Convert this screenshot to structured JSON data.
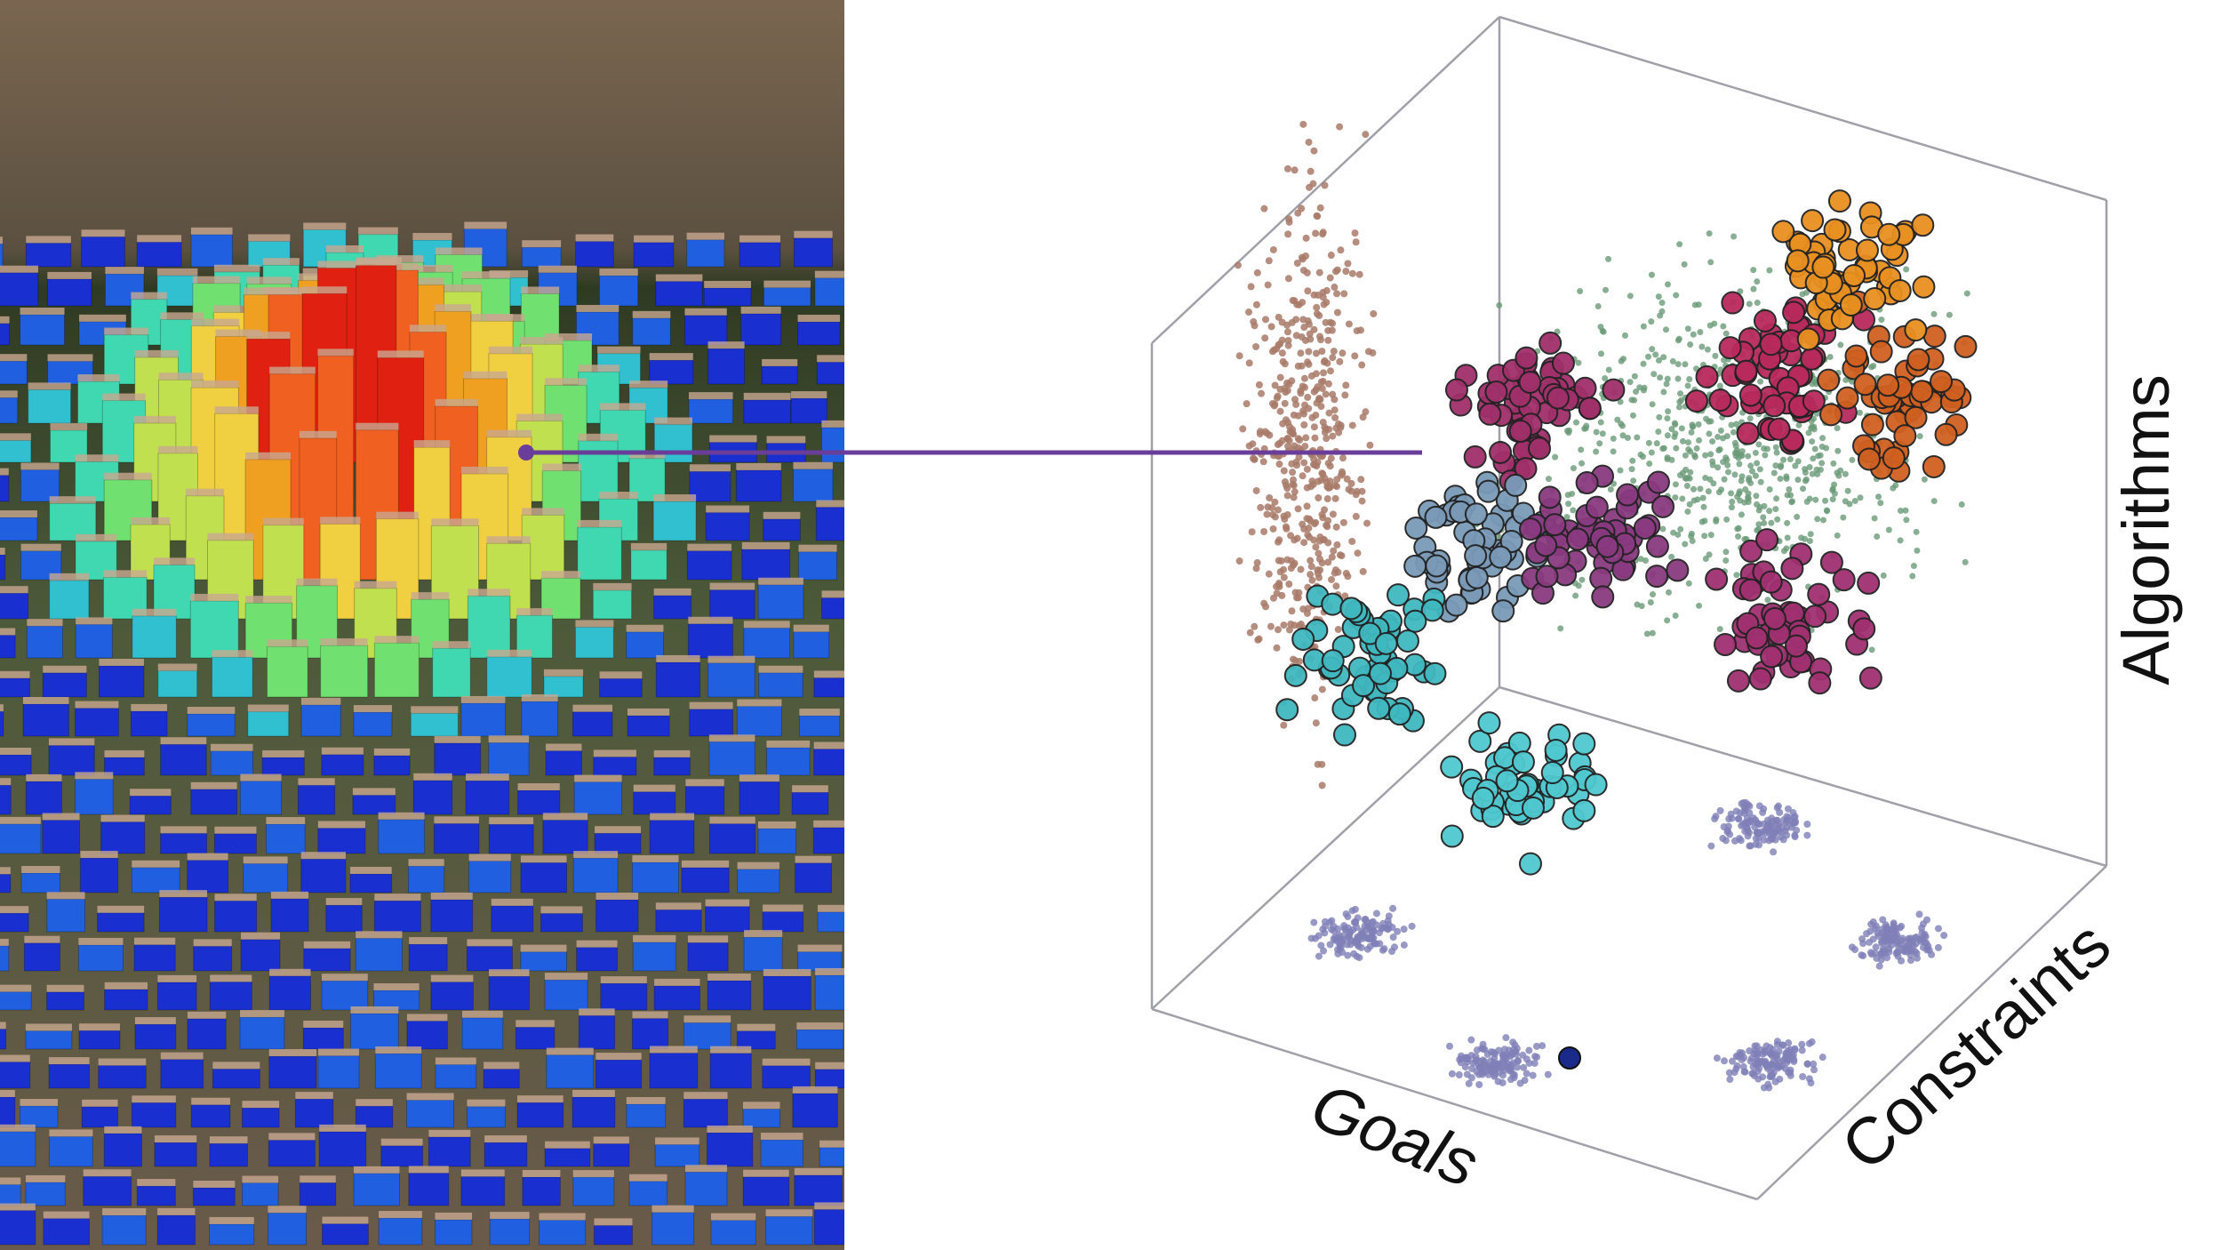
{
  "axes": {
    "x": "Goals",
    "y": "Constraints",
    "z": "Algorithms"
  }
}
